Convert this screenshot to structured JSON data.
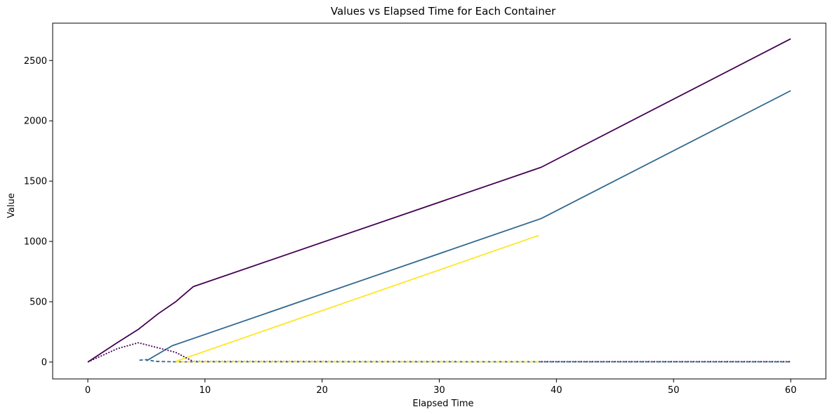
{
  "chart_data": {
    "type": "line",
    "title": "Values vs Elapsed Time for Each Container",
    "xlabel": "Elapsed Time",
    "ylabel": "Value",
    "xlim": [
      -3,
      63
    ],
    "ylim": [
      -140,
      2810
    ],
    "xticks": [
      0,
      10,
      20,
      30,
      40,
      50,
      60
    ],
    "yticks": [
      0,
      500,
      1000,
      1500,
      2000,
      2500
    ],
    "grid": false,
    "legend": "none",
    "series": [
      {
        "color": "#440154",
        "style": "solid",
        "points": [
          [
            0,
            0
          ],
          [
            2.5,
            160
          ],
          [
            4.3,
            270
          ],
          [
            6,
            400
          ],
          [
            7.5,
            500
          ],
          [
            9,
            625
          ],
          [
            38.7,
            1615
          ],
          [
            60,
            2680
          ]
        ]
      },
      {
        "color": "#31688e",
        "style": "solid",
        "points": [
          [
            5,
            10
          ],
          [
            7.2,
            135
          ],
          [
            38.7,
            1190
          ],
          [
            60,
            2250
          ]
        ]
      },
      {
        "color": "#fde725",
        "style": "solid",
        "points": [
          [
            7.5,
            5
          ],
          [
            38.5,
            1050
          ]
        ]
      },
      {
        "color": "#440154",
        "style": "dotted",
        "points": [
          [
            0,
            0
          ],
          [
            2.5,
            110
          ],
          [
            4.3,
            160
          ],
          [
            5.5,
            130
          ],
          [
            7.5,
            80
          ],
          [
            9,
            5
          ],
          [
            38.7,
            3
          ],
          [
            60,
            3
          ]
        ]
      },
      {
        "color": "#31688e",
        "style": "dashed",
        "points": [
          [
            4.4,
            15
          ],
          [
            5,
            20
          ],
          [
            5.8,
            5
          ],
          [
            7.5,
            2
          ],
          [
            38.7,
            2
          ],
          [
            60,
            2
          ]
        ]
      },
      {
        "color": "#fde725",
        "style": "dashed",
        "points": [
          [
            7.5,
            3
          ],
          [
            38.5,
            3
          ]
        ]
      }
    ]
  }
}
